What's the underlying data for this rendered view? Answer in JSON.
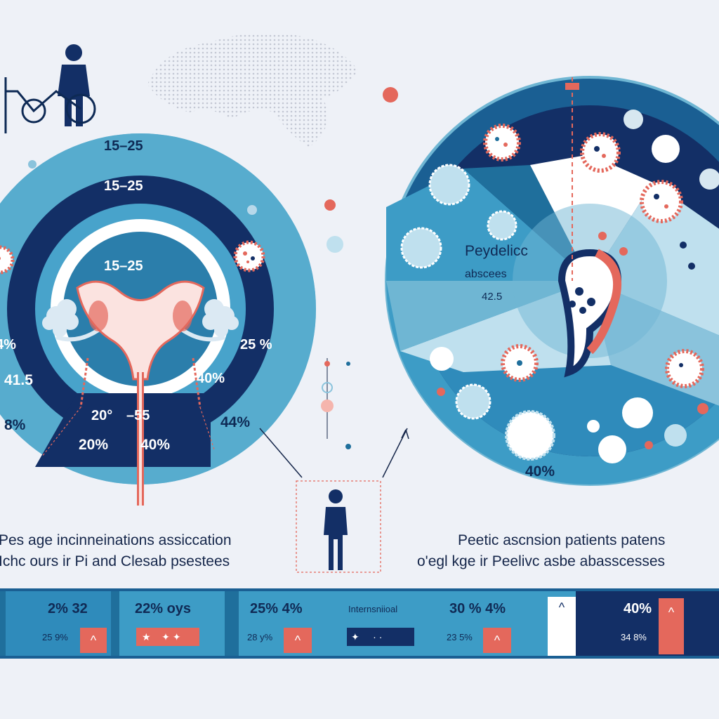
{
  "colors": {
    "navy": "#132f66",
    "blue": "#1f6f9c",
    "light_blue": "#6fb6d3",
    "pale_blue": "#bfe0ee",
    "coral": "#e4685c",
    "background": "#eef1f7"
  },
  "left_panel": {
    "outer_top_label": "15–25",
    "middle_label": "15–25",
    "inner_label": "15–25",
    "left_edge_label": "4%",
    "left_mid_label": "41.5",
    "left_low_label": "8%",
    "right_mid_label": "25 %",
    "right_low_label": "40%",
    "right_outer_label": "44%",
    "bottom_a_label": "20°",
    "bottom_b_label": "–55",
    "bottom_c_label": "20%",
    "bottom_d_label": "40%",
    "caption_line1": "Pes age incinneinations assiccation",
    "caption_line2": "Ichc ours ir Pi  and Clesab psestees",
    "icons": [
      "person-icon",
      "bicycle-icon",
      "uterus-icon",
      "virus-icon"
    ]
  },
  "right_panel": {
    "title_line1": "Peydelicc",
    "title_line2": "abscees",
    "inner_value": "42.5",
    "bottom_value": "40%",
    "caption_line1": "Peetic ascnsion patients patens",
    "caption_line2": "o'egl kge ir Peelivc asbe abasscesses",
    "icons": [
      "virus-icon",
      "bacteria-icon",
      "organ-icon"
    ]
  },
  "center": {
    "figure_icon": "person-icon"
  },
  "band": {
    "cells": [
      {
        "top": "2%  32",
        "bottom": "25 9%"
      },
      {
        "top": "22%  oys",
        "bottom": ""
      },
      {
        "top": "25%  4%",
        "bottom": "28 y%"
      },
      {
        "top": "Internsniioal",
        "bottom": ""
      },
      {
        "top": "30 %  4%",
        "bottom": "23 5%"
      },
      {
        "top": "",
        "bottom": ""
      },
      {
        "top": "40%",
        "bottom": "34 8%"
      }
    ]
  }
}
